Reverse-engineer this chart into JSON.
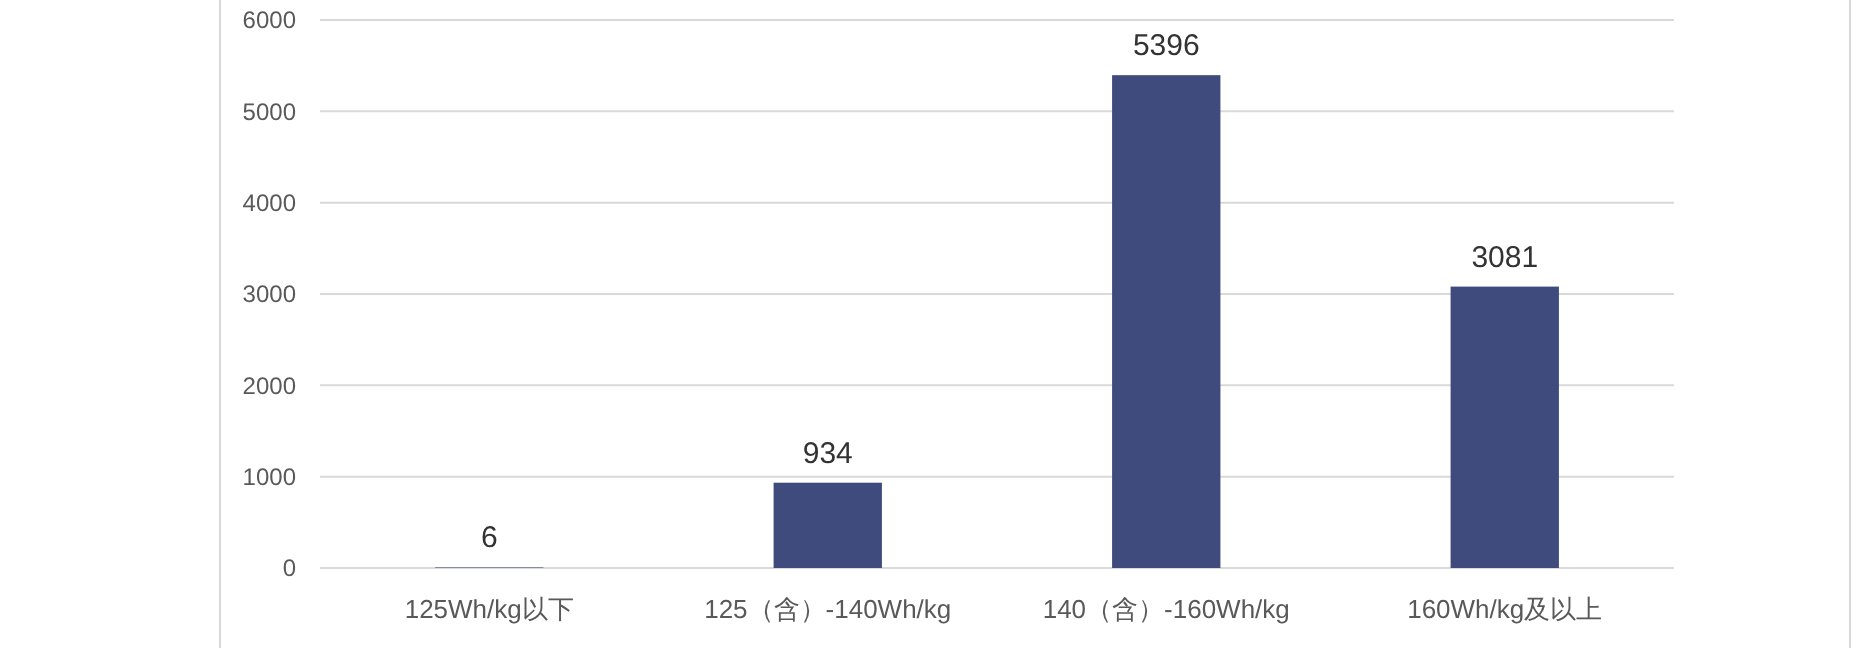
{
  "chart_data": {
    "type": "bar",
    "categories": [
      "125Wh/kg以下",
      "125（含）-140Wh/kg",
      "140（含）-160Wh/kg",
      "160Wh/kg及以上"
    ],
    "values": [
      6,
      934,
      5396,
      3081
    ],
    "color": "#3f4a7d",
    "ylim": [
      0,
      6000
    ],
    "yticks": [
      0,
      1000,
      2000,
      3000,
      4000,
      5000,
      6000
    ],
    "grid": "y",
    "data_labels": true
  }
}
